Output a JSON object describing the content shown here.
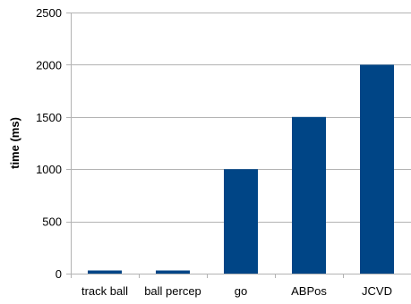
{
  "chart_data": {
    "type": "bar",
    "title": "",
    "xlabel": "",
    "ylabel": "time (ms)",
    "categories": [
      "track ball",
      "ball percep",
      "go",
      "ABPos",
      "JCVD"
    ],
    "values": [
      30,
      30,
      1000,
      1500,
      2000
    ],
    "ylim": [
      0,
      2500
    ],
    "yticks": [
      0,
      500,
      1000,
      1500,
      2000,
      2500
    ],
    "ytick_labels": [
      "0",
      "500",
      "1000",
      "1500",
      "2000",
      "2500"
    ],
    "grid": "horizontal",
    "legend": "none",
    "colors": {
      "bar": "#004586",
      "grid": "#b3b3b3",
      "axis": "#b3b3b3",
      "text": "#000000"
    }
  }
}
